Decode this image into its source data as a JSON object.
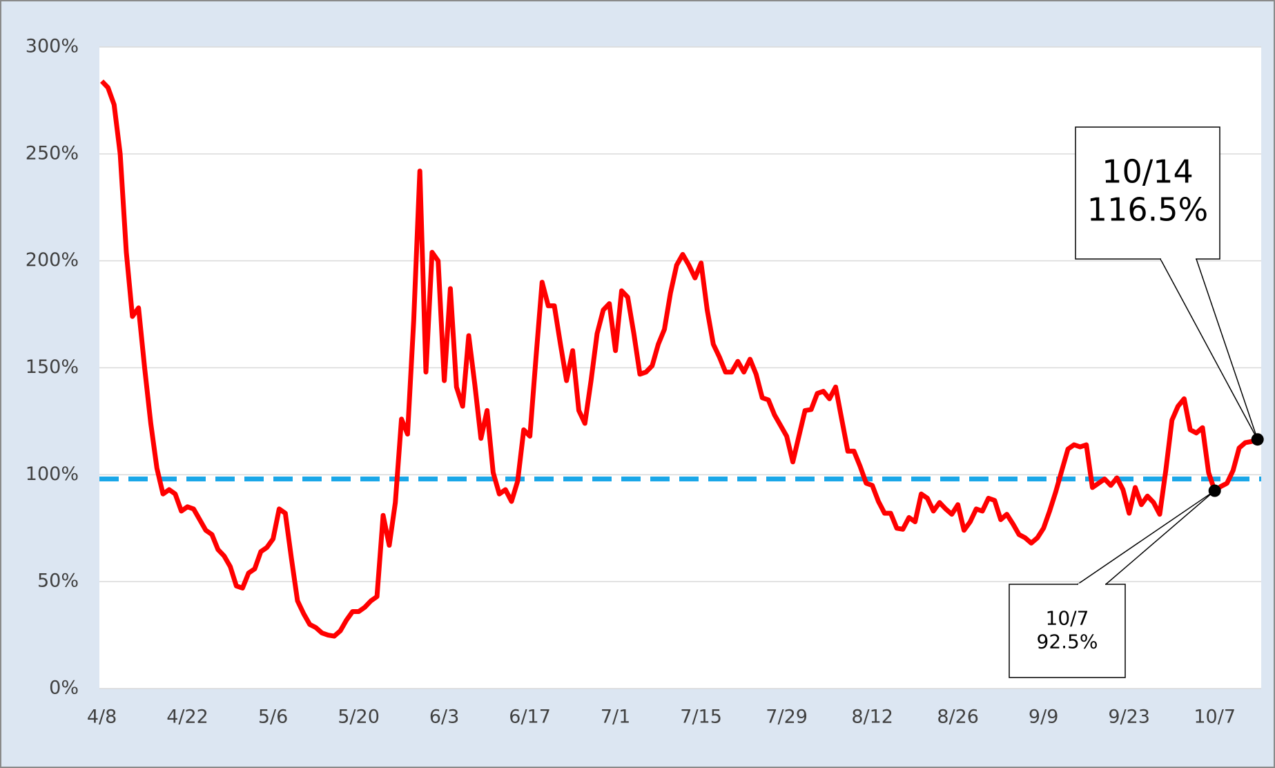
{
  "chart_data": {
    "type": "line",
    "categories": [
      "4/8",
      null,
      null,
      null,
      null,
      null,
      null,
      null,
      null,
      null,
      null,
      null,
      null,
      null,
      "4/22",
      null,
      null,
      null,
      null,
      null,
      null,
      null,
      null,
      null,
      null,
      null,
      null,
      null,
      "5/6",
      null,
      null,
      null,
      null,
      null,
      null,
      null,
      null,
      null,
      null,
      null,
      null,
      null,
      "5/20",
      null,
      null,
      null,
      null,
      null,
      null,
      null,
      null,
      null,
      null,
      null,
      null,
      null,
      "6/3",
      null,
      null,
      null,
      null,
      null,
      null,
      null,
      null,
      null,
      null,
      null,
      null,
      null,
      "6/17",
      null,
      null,
      null,
      null,
      null,
      null,
      null,
      null,
      null,
      null,
      null,
      null,
      null,
      "7/1",
      null,
      null,
      null,
      null,
      null,
      null,
      null,
      null,
      null,
      null,
      null,
      null,
      null,
      "7/15",
      null,
      null,
      null,
      null,
      null,
      null,
      null,
      null,
      null,
      null,
      null,
      null,
      null,
      "7/29",
      null,
      null,
      null,
      null,
      null,
      null,
      null,
      null,
      null,
      null,
      null,
      null,
      null,
      "8/12",
      null,
      null,
      null,
      null,
      null,
      null,
      null,
      null,
      null,
      null,
      null,
      null,
      null,
      "8/26",
      null,
      null,
      null,
      null,
      null,
      null,
      null,
      null,
      null,
      null,
      null,
      null,
      null,
      "9/9",
      null,
      null,
      null,
      null,
      null,
      null,
      null,
      null,
      null,
      null,
      null,
      null,
      null,
      "9/23",
      null,
      null,
      null,
      null,
      null,
      null,
      null,
      null,
      null,
      null,
      null,
      null,
      null,
      "10/7",
      null,
      null,
      null,
      null,
      null,
      null,
      null
    ],
    "series": [
      {
        "color": "#ff0000",
        "values": [
          284,
          281,
          273,
          250,
          204,
          174,
          178,
          150,
          124,
          103,
          91,
          93,
          91,
          83,
          85,
          84,
          79,
          74,
          72,
          65,
          62,
          57,
          48,
          47,
          54,
          56,
          64,
          66,
          70,
          84,
          82,
          61,
          41,
          35,
          30,
          28.5,
          26,
          25,
          24.5,
          27,
          32,
          36,
          36,
          38,
          41,
          43,
          81,
          67,
          87,
          126,
          119,
          172,
          242,
          148,
          204,
          200,
          144,
          187,
          141,
          132,
          165,
          142,
          117,
          130,
          101,
          91,
          93,
          87.5,
          97,
          121,
          118,
          155,
          190,
          179,
          179,
          161,
          144,
          158,
          130,
          124,
          144,
          166,
          177,
          180,
          158,
          186,
          183,
          166,
          147,
          148,
          151,
          161,
          168,
          185,
          198,
          203,
          198,
          192,
          199,
          177,
          161,
          155,
          148,
          148,
          153,
          148,
          154,
          147,
          136,
          135,
          128,
          123,
          118,
          106,
          118,
          130,
          130.5,
          138,
          139,
          135.5,
          141,
          126,
          111,
          111,
          104,
          96,
          95,
          87.5,
          82,
          82,
          75,
          74.5,
          80,
          78,
          91,
          89,
          83,
          87,
          84,
          81.5,
          86,
          74,
          78,
          84,
          83,
          89,
          88,
          79,
          81.5,
          77,
          72,
          70.5,
          68,
          70.5,
          75,
          83,
          92,
          102,
          112,
          114,
          113,
          114,
          94,
          96,
          98,
          95,
          98.5,
          93,
          82,
          94,
          86,
          90,
          87,
          81.5,
          102,
          125.5,
          132,
          135.5,
          121,
          119.5,
          122,
          101,
          92.5,
          94.5,
          96,
          102,
          112.5,
          115,
          115.5,
          116.5
        ]
      }
    ],
    "reference_line": {
      "value": 98,
      "color": "#1aa7e8"
    },
    "annotations": [
      {
        "date": "10/14",
        "value": 116.5,
        "value_label": "116.5%",
        "size": "large"
      },
      {
        "date": "10/7",
        "value": 92.5,
        "value_label": "92.5%",
        "size": "small"
      }
    ],
    "ylim": [
      0,
      300
    ],
    "yticks": [
      {
        "value": 0,
        "label": "0%"
      },
      {
        "value": 50,
        "label": "50%"
      },
      {
        "value": 100,
        "label": "100%"
      },
      {
        "value": 150,
        "label": "150%"
      },
      {
        "value": 200,
        "label": "200%"
      },
      {
        "value": 250,
        "label": "250%"
      },
      {
        "value": 300,
        "label": "300%"
      }
    ],
    "grid": true
  }
}
